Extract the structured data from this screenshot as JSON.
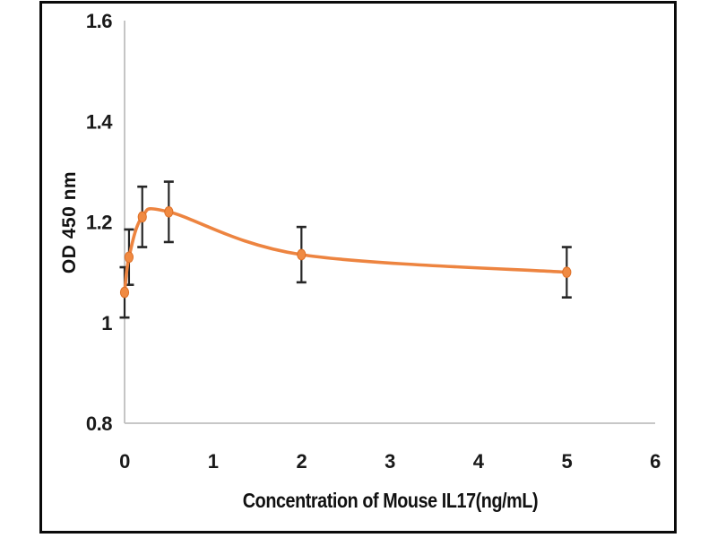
{
  "figure": {
    "background": "#ffffff",
    "frame_color": "#0a0a0a"
  },
  "chart_data": {
    "type": "line",
    "title": "",
    "xlabel": "Concentration of Mouse IL17(ng/mL)",
    "ylabel": "OD 450 nm",
    "xlim": [
      0,
      6
    ],
    "ylim": [
      0.8,
      1.6
    ],
    "x_ticks": [
      0,
      1,
      2,
      3,
      4,
      5,
      6
    ],
    "y_ticks": [
      0.8,
      1,
      1.2,
      1.4,
      1.6
    ],
    "grid": false,
    "legend_position": "none",
    "axis_line_color": "#bfbfbf",
    "tick_label_color": "#1a1a1a",
    "series": [
      {
        "line_color": "#ed8440",
        "marker": "circle",
        "marker_fill": "#f08a42",
        "marker_stroke": "#dd6f26",
        "error_bar_color": "#262626",
        "points": [
          {
            "x": 0,
            "od": 1.06,
            "err": 0.05
          },
          {
            "x": 0.05,
            "od": 1.13,
            "err": 0.055
          },
          {
            "x": 0.2,
            "od": 1.21,
            "err": 0.06
          },
          {
            "x": 0.5,
            "od": 1.22,
            "err": 0.06
          },
          {
            "x": 2,
            "od": 1.135,
            "err": 0.055
          },
          {
            "x": 5,
            "od": 1.1,
            "err": 0.05
          }
        ]
      }
    ]
  }
}
